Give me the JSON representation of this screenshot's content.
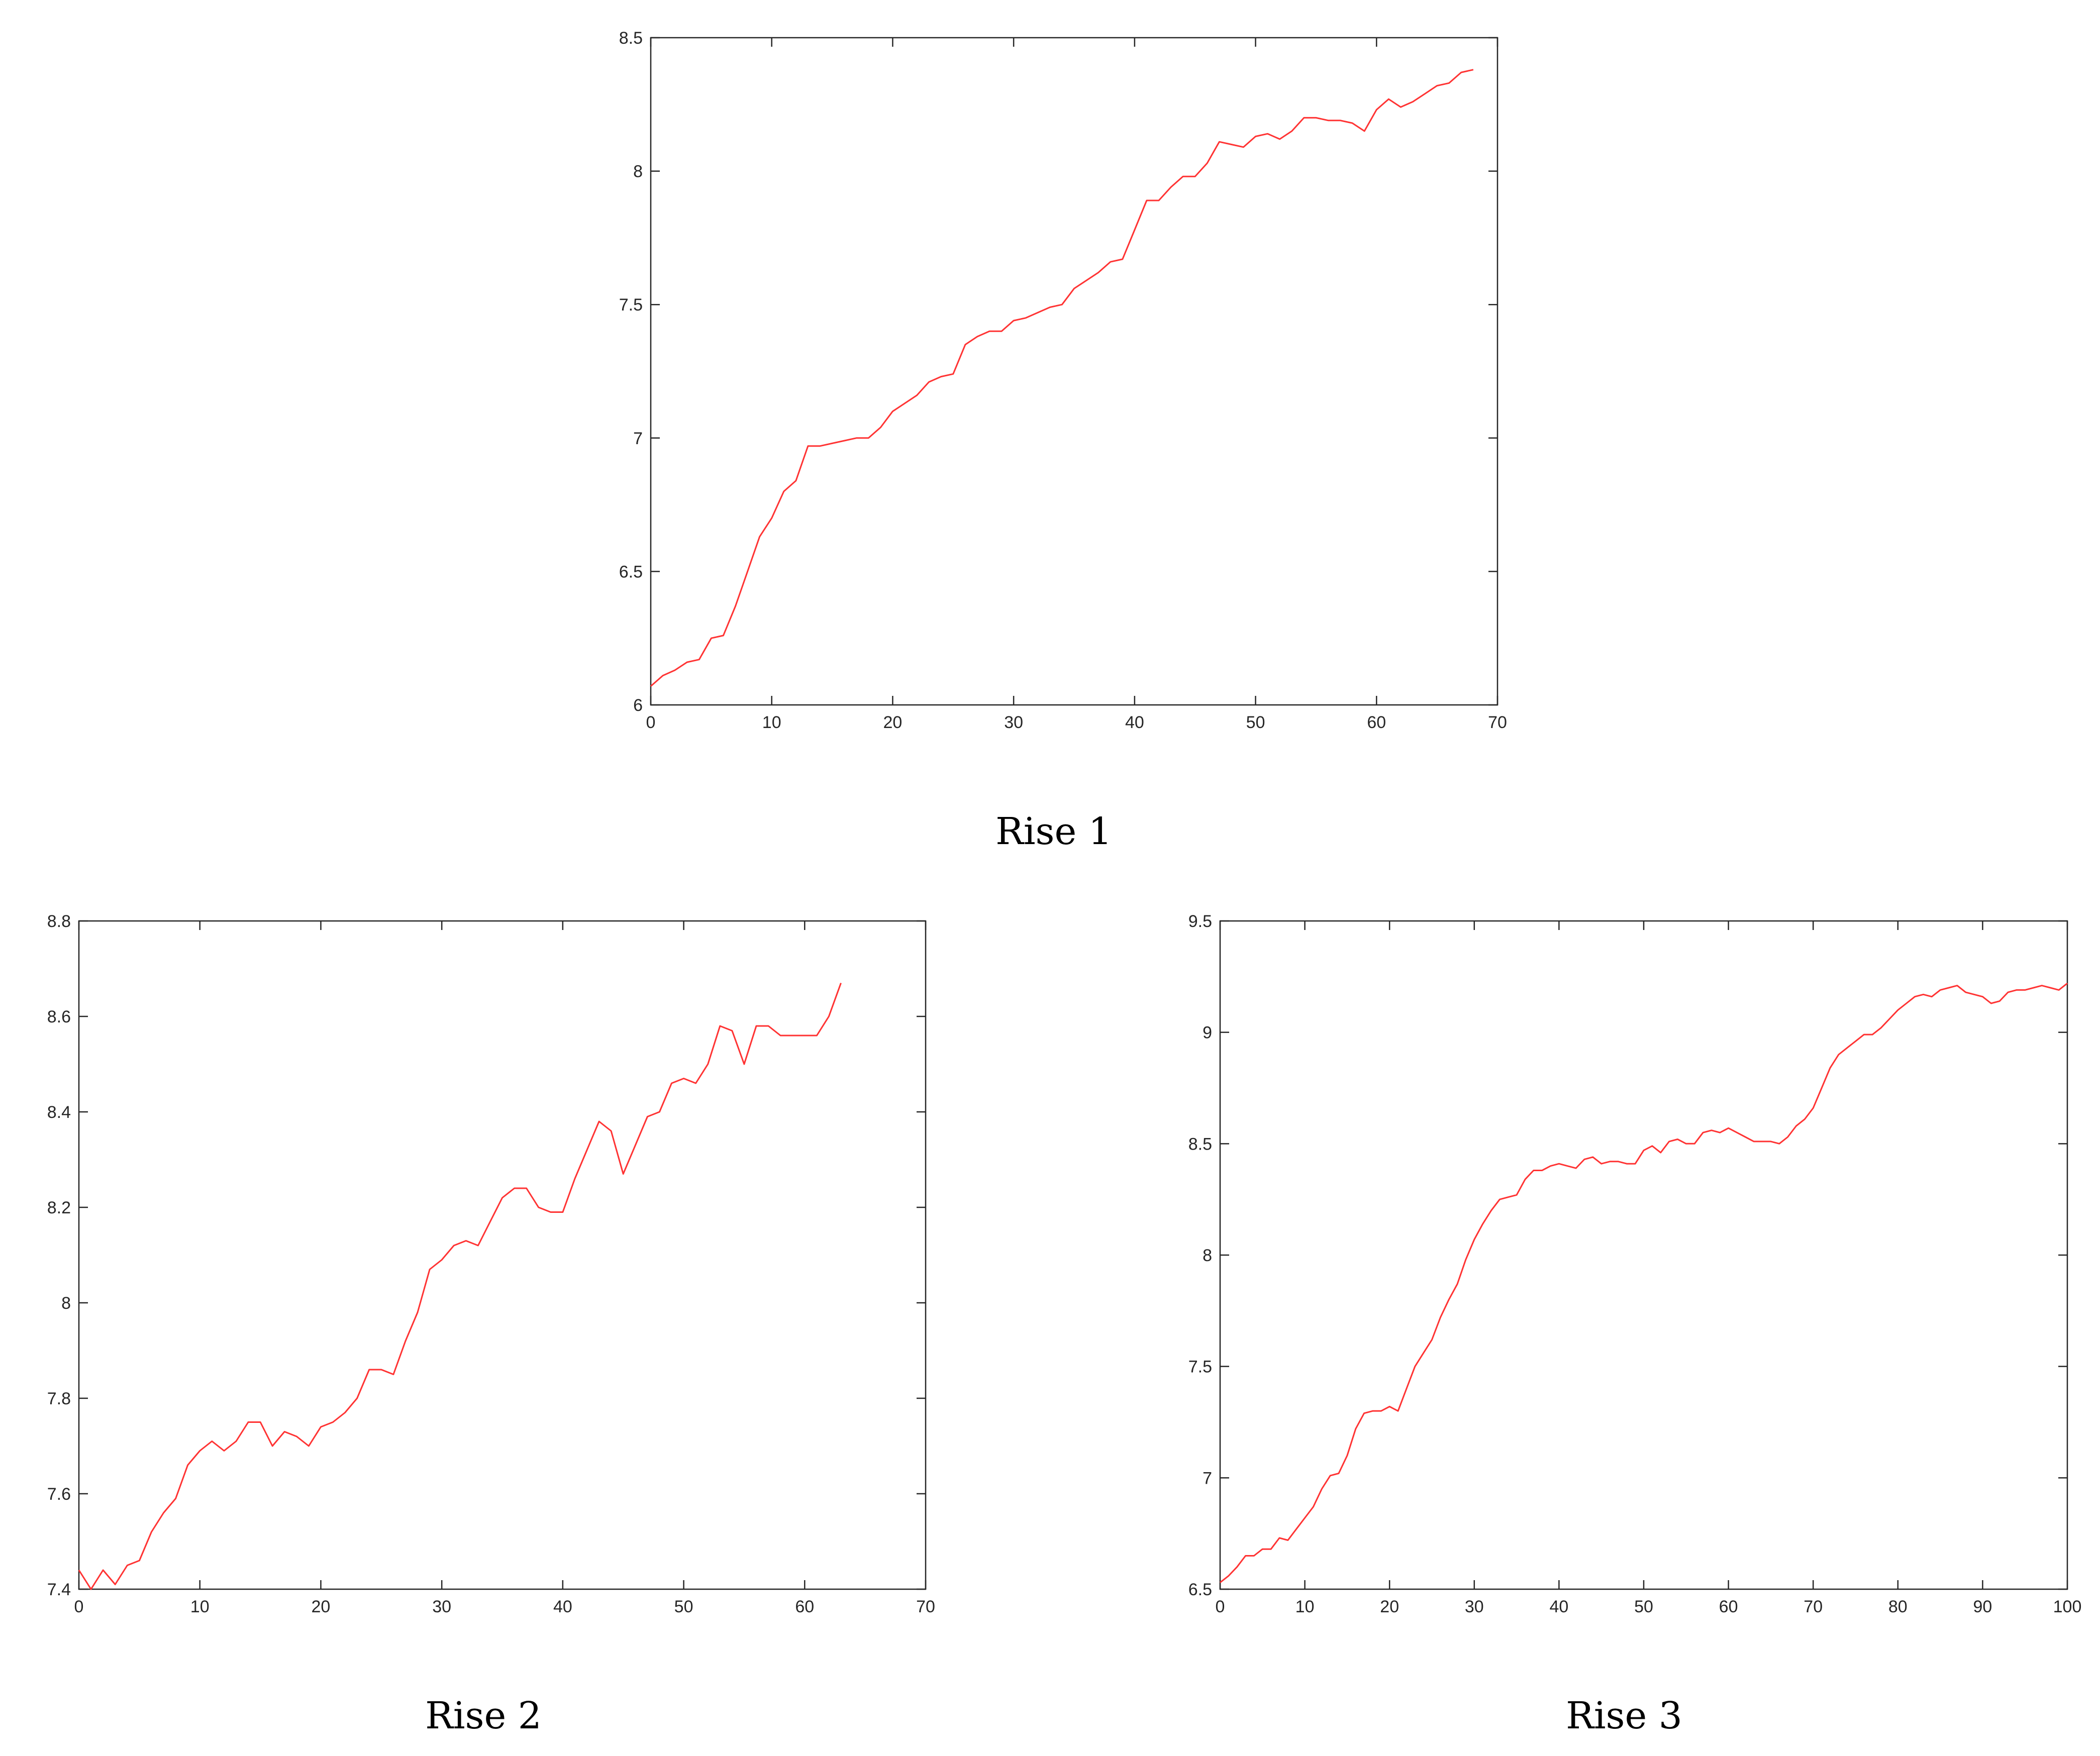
{
  "series_color": "#ff3333",
  "chart_data": [
    {
      "type": "line",
      "caption": "Rise 1",
      "xlim": [
        0,
        70
      ],
      "ylim": [
        6,
        8.5
      ],
      "xticks": [
        0,
        10,
        20,
        30,
        40,
        50,
        60,
        70
      ],
      "xtick_labels": [
        "0",
        "10",
        "20",
        "30",
        "40",
        "50",
        "60",
        "70"
      ],
      "yticks": [
        6,
        6.5,
        7,
        7.5,
        8,
        8.5
      ],
      "ytick_labels": [
        "6",
        "6.5",
        "7",
        "7.5",
        "8",
        "8.5"
      ],
      "series": [
        {
          "values": [
            6.07,
            6.11,
            6.13,
            6.16,
            6.17,
            6.25,
            6.26,
            6.37,
            6.5,
            6.63,
            6.7,
            6.8,
            6.84,
            6.97,
            6.97,
            6.98,
            6.99,
            7.0,
            7.0,
            7.04,
            7.1,
            7.13,
            7.16,
            7.21,
            7.23,
            7.24,
            7.35,
            7.38,
            7.4,
            7.4,
            7.44,
            7.45,
            7.47,
            7.49,
            7.5,
            7.56,
            7.59,
            7.62,
            7.66,
            7.67,
            7.78,
            7.89,
            7.89,
            7.94,
            7.98,
            7.98,
            8.03,
            8.11,
            8.1,
            8.09,
            8.13,
            8.14,
            8.12,
            8.15,
            8.2,
            8.2,
            8.19,
            8.19,
            8.18,
            8.15,
            8.23,
            8.27,
            8.24,
            8.26,
            8.29,
            8.32,
            8.33,
            8.37,
            8.38
          ]
        }
      ]
    },
    {
      "type": "line",
      "caption": "Rise 2",
      "xlim": [
        0,
        70
      ],
      "ylim": [
        7.4,
        8.8
      ],
      "xticks": [
        0,
        10,
        20,
        30,
        40,
        50,
        60,
        70
      ],
      "xtick_labels": [
        "0",
        "10",
        "20",
        "30",
        "40",
        "50",
        "60",
        "70"
      ],
      "yticks": [
        7.4,
        7.6,
        7.8,
        8.0,
        8.2,
        8.4,
        8.6,
        8.8
      ],
      "ytick_labels": [
        "7.4",
        "7.6",
        "7.8",
        "8",
        "8.2",
        "8.4",
        "8.6",
        "8.8"
      ],
      "series": [
        {
          "values": [
            7.44,
            7.4,
            7.44,
            7.41,
            7.45,
            7.46,
            7.52,
            7.56,
            7.59,
            7.66,
            7.69,
            7.71,
            7.69,
            7.71,
            7.75,
            7.75,
            7.7,
            7.73,
            7.72,
            7.7,
            7.74,
            7.75,
            7.77,
            7.8,
            7.86,
            7.86,
            7.85,
            7.92,
            7.98,
            8.07,
            8.09,
            8.12,
            8.13,
            8.12,
            8.17,
            8.22,
            8.24,
            8.24,
            8.2,
            8.19,
            8.19,
            8.26,
            8.32,
            8.38,
            8.36,
            8.27,
            8.33,
            8.39,
            8.4,
            8.46,
            8.47,
            8.46,
            8.5,
            8.58,
            8.57,
            8.5,
            8.58,
            8.58,
            8.56,
            8.56,
            8.56,
            8.56,
            8.6,
            8.67
          ]
        }
      ]
    },
    {
      "type": "line",
      "caption": "Rise 3",
      "xlim": [
        0,
        100
      ],
      "ylim": [
        6.5,
        9.5
      ],
      "xticks": [
        0,
        10,
        20,
        30,
        40,
        50,
        60,
        70,
        80,
        90,
        100
      ],
      "xtick_labels": [
        "0",
        "10",
        "20",
        "30",
        "40",
        "50",
        "60",
        "70",
        "80",
        "90",
        "100"
      ],
      "yticks": [
        6.5,
        7,
        7.5,
        8,
        8.5,
        9,
        9.5
      ],
      "ytick_labels": [
        "6.5",
        "7",
        "7.5",
        "8",
        "8.5",
        "9",
        "9.5"
      ],
      "series": [
        {
          "values": [
            6.53,
            6.56,
            6.6,
            6.65,
            6.65,
            6.68,
            6.68,
            6.73,
            6.72,
            6.77,
            6.82,
            6.87,
            6.95,
            7.01,
            7.02,
            7.1,
            7.22,
            7.29,
            7.3,
            7.3,
            7.32,
            7.3,
            7.4,
            7.5,
            7.56,
            7.62,
            7.72,
            7.8,
            7.87,
            7.98,
            8.07,
            8.14,
            8.2,
            8.25,
            8.26,
            8.27,
            8.34,
            8.38,
            8.38,
            8.4,
            8.41,
            8.4,
            8.39,
            8.43,
            8.44,
            8.41,
            8.42,
            8.42,
            8.41,
            8.41,
            8.47,
            8.49,
            8.46,
            8.51,
            8.52,
            8.5,
            8.5,
            8.55,
            8.56,
            8.55,
            8.57,
            8.55,
            8.53,
            8.51,
            8.51,
            8.51,
            8.5,
            8.53,
            8.58,
            8.61,
            8.66,
            8.75,
            8.84,
            8.9,
            8.93,
            8.96,
            8.99,
            8.99,
            9.02,
            9.06,
            9.1,
            9.13,
            9.16,
            9.17,
            9.16,
            9.19,
            9.2,
            9.21,
            9.18,
            9.17,
            9.16,
            9.13,
            9.14,
            9.18,
            9.19,
            9.19,
            9.2,
            9.21,
            9.2,
            9.19,
            9.22
          ]
        }
      ]
    }
  ]
}
